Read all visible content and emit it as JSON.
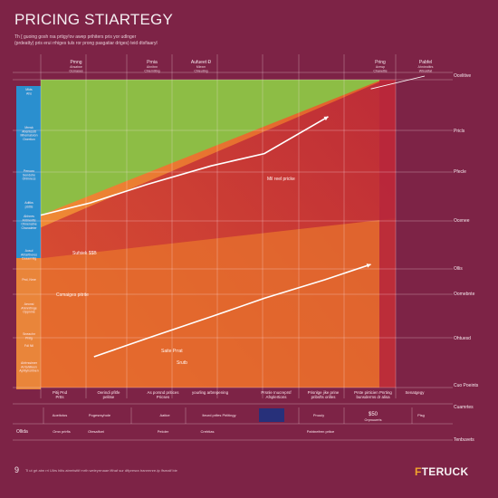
{
  "title": "PRICING STIARTEGY",
  "subtitle_lines": [
    "Th [ guoing gosh rsa prtigy!ov awep prihiters pris yor udlnger",
    "(prdeatty) pris erui rrhiges tuls ror prong pasgatiar driges) teid dtsfiaaryl"
  ],
  "page_number": "9",
  "logo": {
    "mark": "F",
    "text": "TERUCK"
  },
  "footer_text": "Ti ut grt atm rri Ulirs hitis atrrelwitif mrth weleyrrnaae ifthaf sur dftpresra tranrmnre-tp lfsmalf bie",
  "colors": {
    "background": "#7d2346",
    "green": "#8dbd45",
    "red": "#c3293a",
    "orange": "#e8742c",
    "orange_light": "#f0913a",
    "blue": "#2a8fcf",
    "line": "#ffffff"
  },
  "chart_data": {
    "type": "area",
    "title": "PRICING STIARTEGY",
    "xlabel": "",
    "ylabel": "",
    "grid": true,
    "top_headers": [
      {
        "label": "Pmng",
        "sub": [
          "Ahsatwe",
          "Ocmases"
        ]
      },
      {
        "label": "Prnia",
        "sub": [
          "Ahnitnn",
          "Chiemtitng"
        ]
      },
      {
        "label": "Aufueet Ð",
        "sub": [
          "Mlexm",
          "Chieuting"
        ]
      },
      {
        "label": "Pring",
        "sub": [
          "Arewp",
          "Chanettis"
        ]
      },
      {
        "label": "Pabfel",
        "sub": [
          "Ahnieatitrs",
          "Wtruidfat"
        ]
      }
    ],
    "left_axis_labels": [
      [
        "Mkts",
        "Ahs"
      ],
      [
        "Mrnsk",
        "Ahentesitt",
        "Mhemaloion",
        "Onertion"
      ],
      [
        "Pervuro",
        "Sendohe",
        "Ohlinrecs"
      ],
      [
        "Aditks",
        "pSttis"
      ],
      [
        "Ahhnes",
        "Ahtrrenfis",
        "Ohnenatne",
        "Chanaleter"
      ],
      [
        "Aosul",
        "Ahtartheres",
        "Ceaarrntig"
      ],
      [
        "Pnd, Nme"
      ],
      [
        "Aeonsi",
        "Ahmnitinge",
        "Oppnme"
      ],
      [
        "Sneaclnr",
        "Pniig"
      ],
      [
        "Fdl Nil"
      ],
      [
        "Ahfrrssimer",
        "Arrtahilieen",
        "Aphtyhsirtnen"
      ]
    ],
    "right_axis_labels": [
      "Ocelitive",
      "Pricls",
      "Pfecle",
      "Ocenee",
      "Ollis",
      "Oomebnte",
      "Ohtuesd",
      "Cuo Poeints"
    ],
    "bottom_labels": [
      [
        "Pitij Pnd",
        "Prtts"
      ],
      [
        "Oerindi pfitfe",
        "pelitse"
      ],
      [
        "As porsnd pritices",
        "Pricses"
      ],
      [
        "yourling arbrepening",
        ""
      ],
      [
        "Prsnle Inucreprsf",
        "Afsplertions"
      ],
      [
        "Prisnlge jike prine",
        "pribsfts orilles"
      ],
      [
        "Prste pirticien Pnrting",
        "bunsderms dr alisa"
      ],
      [
        "Senatgegy"
      ]
    ],
    "lower_table": {
      "row1": [
        "Aoeitctos",
        "Pogesrsyhole",
        "Aatlce",
        "lteurd prifes Pirlitingy",
        "ONW LIB PISR",
        "Pnuuiy",
        "Pisg"
      ],
      "row1_highlight": [
        "$50",
        "Orpnuuerts"
      ],
      "row1_right": "Cuamrtes",
      "row2_left": "Ollida",
      "row2": [
        "Omn prirfis",
        "Otesalfcei",
        "Peloler",
        "Crehtias",
        "Pahtnefren pritce"
      ],
      "row2_right": "Tenbuvets"
    },
    "annotations": [
      {
        "text": "Mil reel pricke"
      },
      {
        "text": "Sufsiek $$B"
      },
      {
        "text": "Csmaiges pitrite"
      },
      {
        "text": "Saite Prrat"
      },
      {
        "text": "Srutb"
      }
    ],
    "series": [
      {
        "name": "",
        "kind": "band",
        "color": "green",
        "x": [
          0,
          100
        ],
        "y_low": [
          0.0,
          0.0
        ],
        "y_high": [
          0.0,
          0.0
        ]
      }
    ],
    "lines": [
      {
        "x": [
          0,
          14,
          30,
          48,
          63,
          81
        ],
        "y": [
          56,
          60,
          66,
          72,
          76,
          88
        ]
      },
      {
        "x": [
          15,
          30,
          48,
          63,
          80,
          93
        ],
        "y": [
          10,
          16,
          23,
          29,
          35,
          40
        ]
      }
    ]
  }
}
